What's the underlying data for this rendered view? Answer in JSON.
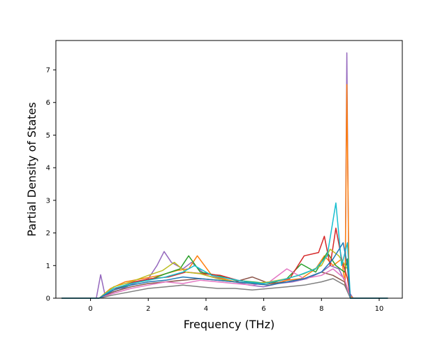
{
  "chart_data": {
    "type": "line",
    "title": "",
    "xlabel": "Frequency (THz)",
    "ylabel": "Partial Density of States",
    "xlim": [
      -1.2,
      10.8
    ],
    "ylim": [
      0,
      7.9
    ],
    "xticks": [
      0,
      2,
      4,
      6,
      8,
      10
    ],
    "yticks": [
      0,
      1,
      2,
      3,
      4,
      5,
      6,
      7
    ],
    "grid": false,
    "legend": "none",
    "colors": [
      "#1f77b4",
      "#ff7f0e",
      "#2ca02c",
      "#d62728",
      "#9467bd",
      "#8c564b",
      "#e377c2",
      "#7f7f7f",
      "#bcbd22",
      "#17becf"
    ],
    "series": [
      {
        "color": "#9467bd",
        "x": [
          -1.0,
          0.2,
          0.35,
          0.5,
          1.0,
          1.5,
          2.0,
          2.3,
          2.55,
          2.8,
          3.2,
          3.5,
          4.0,
          4.5,
          5.0,
          5.5,
          6.0,
          6.5,
          7.0,
          7.5,
          8.0,
          8.3,
          8.6,
          8.82,
          8.88,
          8.95,
          9.1,
          10.3
        ],
        "y": [
          0,
          0,
          0.72,
          0.1,
          0.25,
          0.45,
          0.6,
          1.0,
          1.43,
          1.1,
          0.9,
          1.1,
          0.7,
          0.6,
          0.5,
          0.4,
          0.35,
          0.45,
          0.5,
          0.6,
          0.8,
          1.0,
          0.9,
          0.5,
          7.52,
          0.2,
          0,
          0
        ]
      },
      {
        "color": "#ff7f0e",
        "x": [
          -1.0,
          0.3,
          0.7,
          1.2,
          1.8,
          2.4,
          3.0,
          3.4,
          3.7,
          4.2,
          5.0,
          5.6,
          6.2,
          6.8,
          7.3,
          7.8,
          8.1,
          8.4,
          8.7,
          8.82,
          8.88,
          8.96,
          9.1,
          10.3
        ],
        "y": [
          0,
          0,
          0.3,
          0.5,
          0.6,
          0.7,
          0.85,
          0.9,
          1.3,
          0.7,
          0.5,
          0.45,
          0.4,
          0.55,
          0.6,
          0.9,
          1.3,
          1.0,
          1.2,
          0.4,
          6.55,
          0.1,
          0,
          0
        ]
      },
      {
        "color": "#2ca02c",
        "x": [
          -1.0,
          0.3,
          0.8,
          1.4,
          2.0,
          2.6,
          3.1,
          3.4,
          3.8,
          4.4,
          5.0,
          5.6,
          6.2,
          6.8,
          7.3,
          7.8,
          8.2,
          8.5,
          8.8,
          8.9,
          9.0,
          10.3
        ],
        "y": [
          0,
          0,
          0.25,
          0.45,
          0.55,
          0.75,
          0.9,
          1.3,
          0.8,
          0.7,
          0.55,
          0.5,
          0.45,
          0.6,
          1.05,
          0.8,
          1.4,
          1.0,
          0.8,
          1.2,
          0,
          0
        ]
      },
      {
        "color": "#d62728",
        "x": [
          -1.0,
          0.3,
          0.9,
          1.5,
          2.1,
          2.7,
          3.3,
          3.9,
          4.5,
          5.1,
          5.7,
          6.3,
          6.9,
          7.4,
          7.9,
          8.1,
          8.3,
          8.5,
          8.7,
          8.9,
          9.0,
          10.3
        ],
        "y": [
          0,
          0,
          0.3,
          0.5,
          0.6,
          0.65,
          0.8,
          0.75,
          0.7,
          0.55,
          0.45,
          0.5,
          0.6,
          1.3,
          1.4,
          1.9,
          1.0,
          2.15,
          1.2,
          0.6,
          0,
          0
        ]
      },
      {
        "color": "#8c564b",
        "x": [
          -1.0,
          0.3,
          0.8,
          1.4,
          2.0,
          2.6,
          3.2,
          3.8,
          4.4,
          5.0,
          5.6,
          6.2,
          6.8,
          7.4,
          8.0,
          8.4,
          8.8,
          9.0,
          10.3
        ],
        "y": [
          0,
          0,
          0.2,
          0.35,
          0.45,
          0.5,
          0.55,
          0.6,
          0.55,
          0.5,
          0.65,
          0.45,
          0.5,
          0.6,
          0.8,
          0.7,
          0.5,
          0,
          0
        ]
      },
      {
        "color": "#e377c2",
        "x": [
          -1.0,
          0.3,
          0.8,
          1.4,
          2.0,
          2.6,
          3.2,
          3.8,
          4.4,
          5.0,
          5.6,
          6.2,
          6.8,
          7.4,
          8.0,
          8.4,
          8.8,
          9.0,
          10.3
        ],
        "y": [
          0,
          0,
          0.15,
          0.3,
          0.4,
          0.5,
          0.45,
          0.55,
          0.5,
          0.45,
          0.4,
          0.5,
          0.9,
          0.6,
          0.7,
          0.9,
          0.6,
          0,
          0
        ]
      },
      {
        "color": "#7f7f7f",
        "x": [
          -1.0,
          0.3,
          0.8,
          1.4,
          2.0,
          2.6,
          3.2,
          3.8,
          4.4,
          5.0,
          5.6,
          6.2,
          6.8,
          7.4,
          8.0,
          8.4,
          8.8,
          9.0,
          10.3
        ],
        "y": [
          0,
          0,
          0.1,
          0.2,
          0.3,
          0.35,
          0.4,
          0.35,
          0.3,
          0.3,
          0.25,
          0.3,
          0.35,
          0.4,
          0.5,
          0.6,
          0.4,
          0,
          0
        ]
      },
      {
        "color": "#bcbd22",
        "x": [
          -1.0,
          0.3,
          0.8,
          1.4,
          2.0,
          2.5,
          2.9,
          3.3,
          3.8,
          4.4,
          5.0,
          5.6,
          6.2,
          6.8,
          7.4,
          8.0,
          8.3,
          8.6,
          8.9,
          9.0,
          10.3
        ],
        "y": [
          0,
          0,
          0.35,
          0.5,
          0.7,
          0.85,
          1.1,
          0.8,
          0.75,
          0.6,
          0.5,
          0.45,
          0.5,
          0.6,
          0.75,
          1.0,
          1.5,
          1.3,
          0.9,
          0,
          0
        ]
      },
      {
        "color": "#17becf",
        "x": [
          -1.0,
          0.3,
          0.8,
          1.4,
          2.0,
          2.6,
          3.2,
          3.6,
          4.2,
          4.8,
          5.4,
          6.0,
          6.6,
          7.2,
          7.8,
          8.2,
          8.5,
          8.7,
          8.9,
          9.0,
          10.3
        ],
        "y": [
          0,
          0,
          0.3,
          0.45,
          0.55,
          0.65,
          0.8,
          1.0,
          0.7,
          0.6,
          0.5,
          0.45,
          0.55,
          0.7,
          0.9,
          1.3,
          2.92,
          1.0,
          1.7,
          0,
          0
        ]
      },
      {
        "color": "#1f77b4",
        "x": [
          -1.0,
          0.3,
          0.8,
          1.4,
          2.0,
          2.6,
          3.2,
          3.8,
          4.4,
          5.0,
          5.6,
          6.2,
          6.8,
          7.4,
          8.0,
          8.4,
          8.75,
          8.9,
          9.0,
          10.3
        ],
        "y": [
          0,
          0,
          0.25,
          0.4,
          0.5,
          0.55,
          0.65,
          0.6,
          0.55,
          0.5,
          0.45,
          0.4,
          0.5,
          0.6,
          0.8,
          1.2,
          1.7,
          1.0,
          0,
          0
        ]
      }
    ]
  }
}
